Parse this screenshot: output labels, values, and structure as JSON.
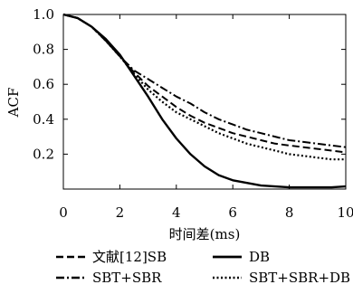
{
  "chart_data": {
    "type": "line",
    "title": "",
    "xlabel": "时间差(ms)",
    "ylabel": "ACF",
    "xlim": [
      0,
      10
    ],
    "ylim": [
      0,
      1.0
    ],
    "x_ticks": [
      "0",
      "2",
      "4",
      "6",
      "8",
      "10"
    ],
    "y_ticks": [
      "0.2",
      "0.4",
      "0.6",
      "0.8",
      "1.0"
    ],
    "grid": false,
    "legend_position": "bottom",
    "series": [
      {
        "name": "文献[12]SB",
        "dash": "dashed",
        "color": "#000000",
        "points": [
          [
            0,
            1.0
          ],
          [
            0.5,
            0.98
          ],
          [
            1,
            0.93
          ],
          [
            1.5,
            0.85
          ],
          [
            2,
            0.76
          ],
          [
            2.5,
            0.67
          ],
          [
            3,
            0.59
          ],
          [
            3.5,
            0.53
          ],
          [
            4,
            0.47
          ],
          [
            4.5,
            0.42
          ],
          [
            5,
            0.38
          ],
          [
            5.5,
            0.35
          ],
          [
            6,
            0.32
          ],
          [
            6.5,
            0.3
          ],
          [
            7,
            0.28
          ],
          [
            7.5,
            0.26
          ],
          [
            8,
            0.25
          ],
          [
            8.5,
            0.24
          ],
          [
            9,
            0.23
          ],
          [
            9.5,
            0.22
          ],
          [
            10,
            0.21
          ]
        ]
      },
      {
        "name": "DB",
        "dash": "solid",
        "color": "#000000",
        "points": [
          [
            0,
            1.0
          ],
          [
            0.5,
            0.98
          ],
          [
            1,
            0.93
          ],
          [
            1.5,
            0.86
          ],
          [
            2,
            0.77
          ],
          [
            2.5,
            0.65
          ],
          [
            3,
            0.53
          ],
          [
            3.5,
            0.4
          ],
          [
            4,
            0.29
          ],
          [
            4.5,
            0.2
          ],
          [
            5,
            0.13
          ],
          [
            5.5,
            0.08
          ],
          [
            6,
            0.05
          ],
          [
            6.5,
            0.035
          ],
          [
            7,
            0.02
          ],
          [
            7.5,
            0.015
          ],
          [
            8,
            0.01
          ],
          [
            8.5,
            0.01
          ],
          [
            9,
            0.01
          ],
          [
            9.5,
            0.01
          ],
          [
            10,
            0.015
          ]
        ]
      },
      {
        "name": "SBT+SBR",
        "dash": "dashdot",
        "color": "#000000",
        "points": [
          [
            0,
            1.0
          ],
          [
            0.5,
            0.98
          ],
          [
            1,
            0.93
          ],
          [
            1.5,
            0.85
          ],
          [
            2,
            0.76
          ],
          [
            2.5,
            0.68
          ],
          [
            3,
            0.63
          ],
          [
            3.5,
            0.58
          ],
          [
            4,
            0.53
          ],
          [
            4.5,
            0.49
          ],
          [
            5,
            0.44
          ],
          [
            5.5,
            0.4
          ],
          [
            6,
            0.37
          ],
          [
            6.5,
            0.34
          ],
          [
            7,
            0.32
          ],
          [
            7.5,
            0.3
          ],
          [
            8,
            0.28
          ],
          [
            8.5,
            0.27
          ],
          [
            9,
            0.26
          ],
          [
            9.5,
            0.25
          ],
          [
            10,
            0.24
          ]
        ]
      },
      {
        "name": "SBT+SBR+DB",
        "dash": "dotted",
        "color": "#000000",
        "points": [
          [
            0,
            1.0
          ],
          [
            0.5,
            0.98
          ],
          [
            1,
            0.93
          ],
          [
            1.5,
            0.85
          ],
          [
            2,
            0.76
          ],
          [
            2.5,
            0.66
          ],
          [
            3,
            0.57
          ],
          [
            3.5,
            0.5
          ],
          [
            4,
            0.44
          ],
          [
            4.5,
            0.4
          ],
          [
            5,
            0.36
          ],
          [
            5.5,
            0.32
          ],
          [
            6,
            0.29
          ],
          [
            6.5,
            0.26
          ],
          [
            7,
            0.24
          ],
          [
            7.5,
            0.22
          ],
          [
            8,
            0.2
          ],
          [
            8.5,
            0.19
          ],
          [
            9,
            0.18
          ],
          [
            9.5,
            0.17
          ],
          [
            10,
            0.17
          ]
        ]
      }
    ]
  }
}
